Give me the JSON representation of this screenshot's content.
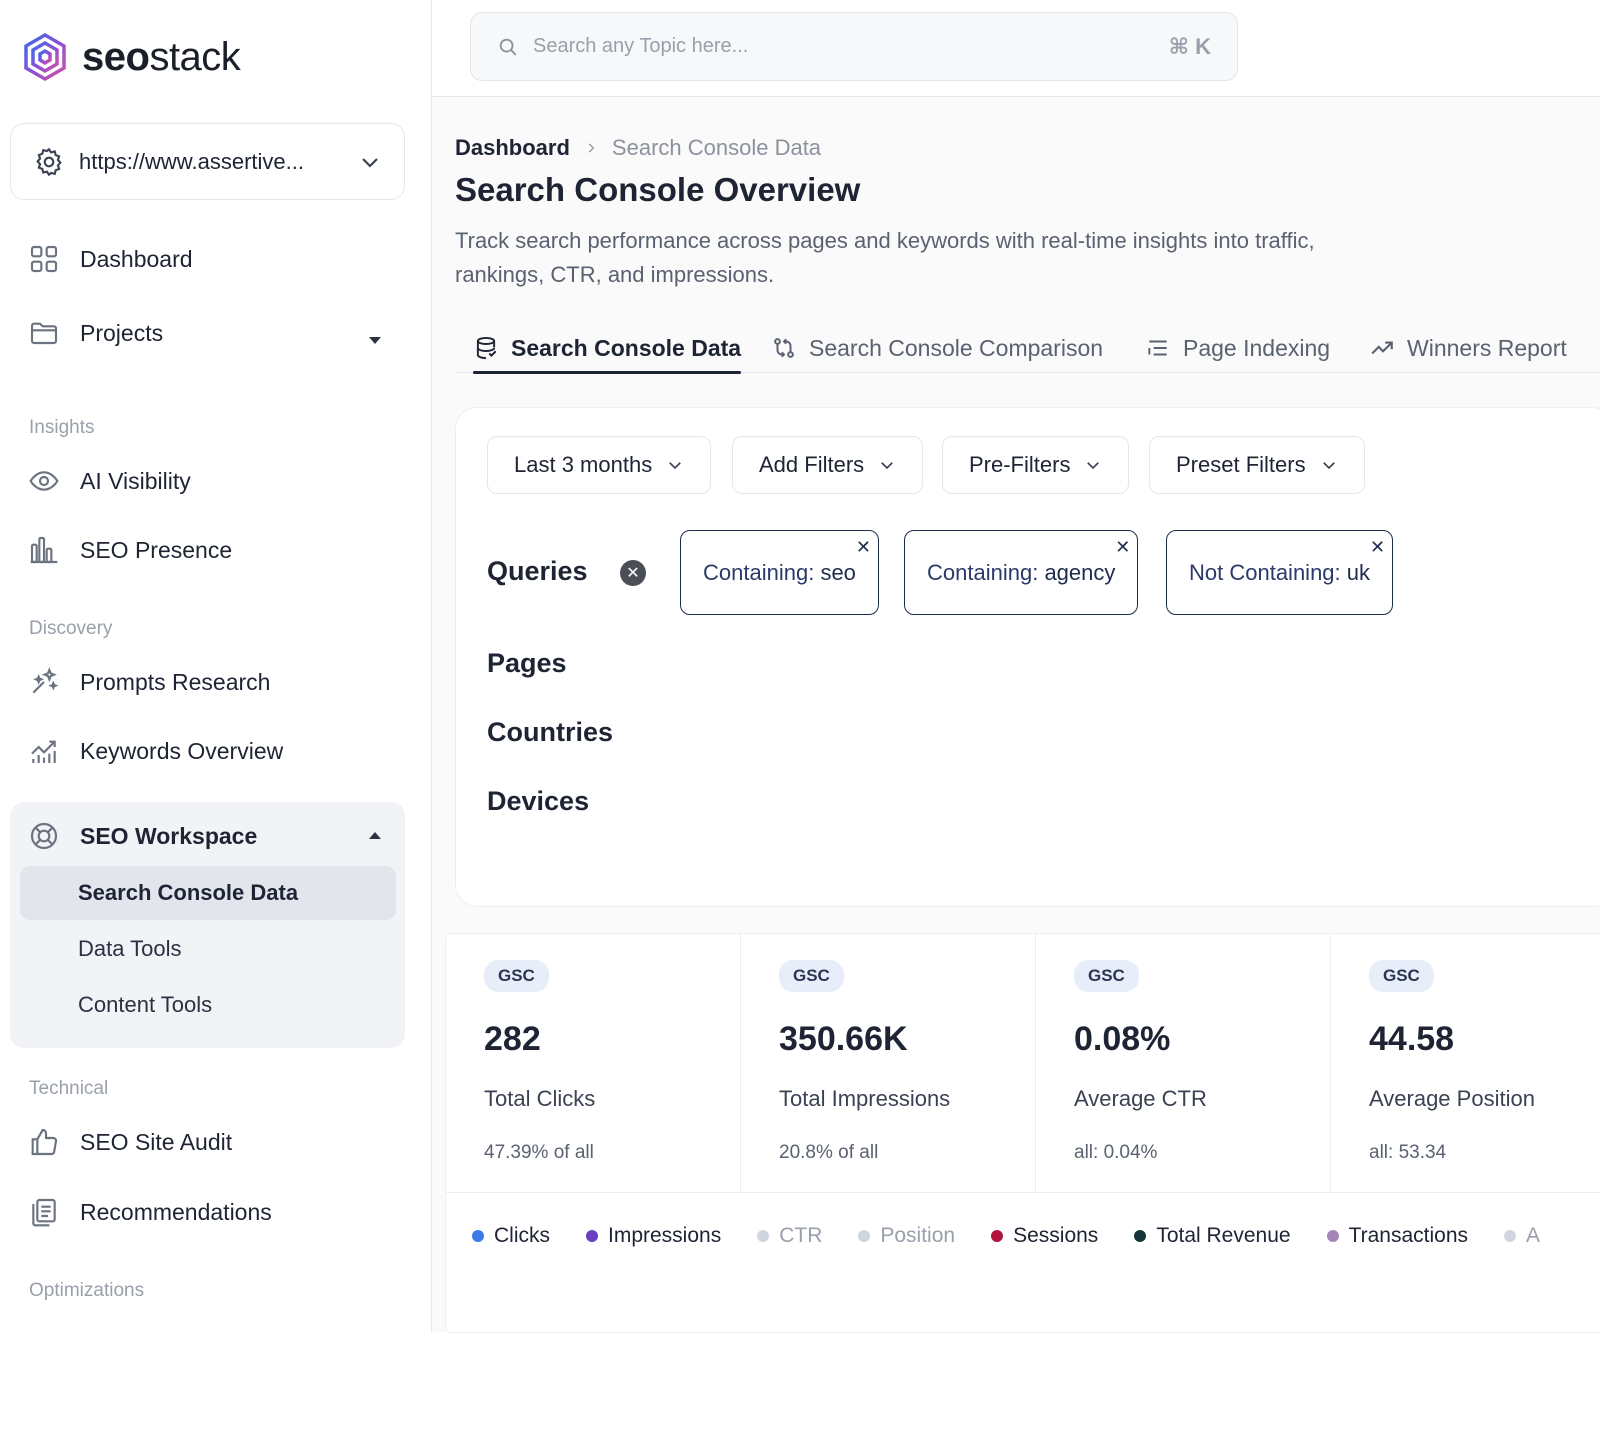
{
  "brand": {
    "name_bold": "seo",
    "name_light": "stack"
  },
  "site_select": {
    "url": "https://www.assertive..."
  },
  "search": {
    "placeholder": "Search any Topic here...",
    "shortcut": "⌘ K"
  },
  "sidebar": {
    "items": [
      {
        "label": "Dashboard"
      },
      {
        "label": "Projects"
      }
    ],
    "sections": {
      "insights": "Insights",
      "discovery": "Discovery",
      "technical": "Technical",
      "optimizations": "Optimizations"
    },
    "insights_items": [
      {
        "label": "AI Visibility"
      },
      {
        "label": "SEO Presence"
      }
    ],
    "discovery_items": [
      {
        "label": "Prompts Research"
      },
      {
        "label": "Keywords Overview"
      }
    ],
    "workspace": {
      "label": "SEO Workspace",
      "sub_items": [
        {
          "label": "Search Console Data"
        },
        {
          "label": "Data Tools"
        },
        {
          "label": "Content Tools"
        }
      ]
    },
    "technical_items": [
      {
        "label": "SEO Site Audit"
      },
      {
        "label": "Recommendations"
      }
    ]
  },
  "main": {
    "breadcrumb": {
      "root": "Dashboard",
      "current": "Search Console Data"
    },
    "title": "Search Console Overview",
    "description": "Track search performance across pages and keywords with real-time insights into traffic, rankings, CTR, and impressions.",
    "tabs": [
      {
        "label": "Search Console Data"
      },
      {
        "label": "Search Console Comparison"
      },
      {
        "label": "Page Indexing"
      },
      {
        "label": "Winners Report"
      }
    ],
    "filters": {
      "buttons": [
        {
          "label": "Last 3 months"
        },
        {
          "label": "Add Filters"
        },
        {
          "label": "Pre-Filters"
        },
        {
          "label": "Preset Filters"
        }
      ],
      "groups": {
        "queries": "Queries",
        "pages": "Pages",
        "countries": "Countries",
        "devices": "Devices"
      },
      "chips": [
        {
          "prefix": "Containing: ",
          "value": "seo"
        },
        {
          "prefix": "Containing: ",
          "value": "agency"
        },
        {
          "prefix": "Not Containing: ",
          "value": "uk"
        }
      ]
    },
    "stats": [
      {
        "badge": "GSC",
        "value": "282",
        "label": "Total Clicks",
        "sub": "47.39% of all"
      },
      {
        "badge": "GSC",
        "value": "350.66K",
        "label": "Total Impressions",
        "sub": "20.8% of all"
      },
      {
        "badge": "GSC",
        "value": "0.08%",
        "label": "Average CTR",
        "sub": "all: 0.04%"
      },
      {
        "badge": "GSC",
        "value": "44.58",
        "label": "Average Position",
        "sub": "all: 53.34"
      }
    ],
    "legend": [
      {
        "label": "Clicks",
        "color": "#3b7be8",
        "active": true
      },
      {
        "label": "Impressions",
        "color": "#6b3fc4",
        "active": true
      },
      {
        "label": "CTR",
        "color": "#cfd6e2",
        "active": false
      },
      {
        "label": "Position",
        "color": "#cfd6e2",
        "active": false
      },
      {
        "label": "Sessions",
        "color": "#b0143c",
        "active": true
      },
      {
        "label": "Total Revenue",
        "color": "#17333a",
        "active": true
      },
      {
        "label": "Transactions",
        "color": "#a385b8",
        "active": true
      },
      {
        "label": "A",
        "color": "#cfd6e2",
        "active": false
      }
    ]
  }
}
